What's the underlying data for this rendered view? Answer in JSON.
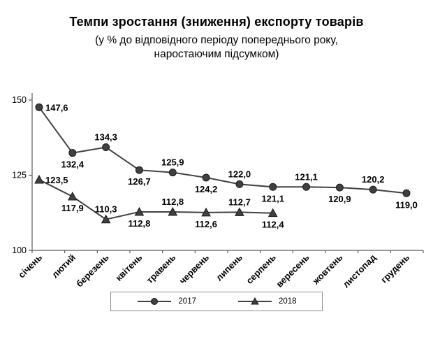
{
  "chart_data": {
    "type": "line",
    "title": "Темпи зростання (зниження) експорту товарів",
    "subtitle": [
      "(у % до відповідного періоду попереднього року,",
      "наростаючим підсумком)"
    ],
    "categories": [
      "січень",
      "лютий",
      "березень",
      "квітень",
      "травень",
      "червень",
      "липень",
      "серпень",
      "вересень",
      "жовтень",
      "листопад",
      "грудень"
    ],
    "series": [
      {
        "name": "2017",
        "marker": "circle",
        "values": [
          147.6,
          132.4,
          134.3,
          126.7,
          125.9,
          124.2,
          122.0,
          121.1,
          121.1,
          120.9,
          120.2,
          119.0
        ],
        "labels": [
          "147,6",
          "132,4",
          "134,3",
          "126,7",
          "125,9",
          "124,2",
          "122,0",
          "121,1",
          "121,1",
          "120,9",
          "120,2",
          "119,0"
        ],
        "label_pos": [
          "right",
          "below",
          "above",
          "below",
          "above",
          "below",
          "above",
          "below",
          "above",
          "below",
          "above",
          "below"
        ]
      },
      {
        "name": "2018",
        "marker": "triangle",
        "values": [
          123.5,
          117.9,
          110.3,
          112.8,
          112.8,
          112.6,
          112.7,
          112.4
        ],
        "labels": [
          "123,5",
          "117,9",
          "110,3",
          "112,8",
          "112,8",
          "112,6",
          "112,7",
          "112,4"
        ],
        "label_pos": [
          "right",
          "below",
          "above",
          "below",
          "above",
          "below",
          "above",
          "below"
        ]
      }
    ],
    "xlabel": "",
    "ylabel": "",
    "ylim": [
      100,
      150
    ],
    "yticks": [
      100,
      125,
      150
    ],
    "grid": false,
    "legend_position": "bottom",
    "line_color": "#404040",
    "marker_edge_color": "#1a1a1a",
    "axis_color": "#595959",
    "text_color": "#000000"
  }
}
